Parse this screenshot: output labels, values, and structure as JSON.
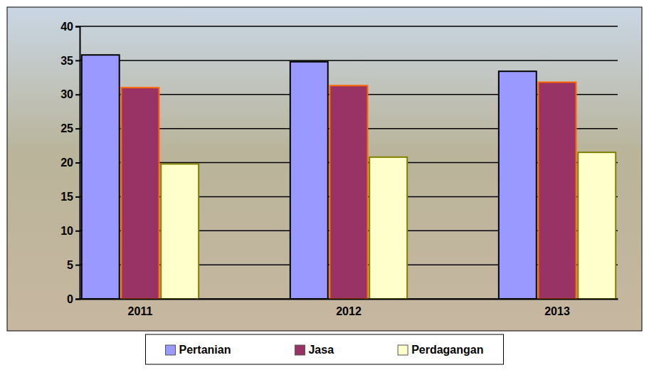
{
  "chart_data": {
    "type": "bar",
    "categories": [
      "2011",
      "2012",
      "2013"
    ],
    "series": [
      {
        "name": "Pertanian",
        "color": "#9999ff",
        "values": [
          35.8,
          34.8,
          33.4
        ]
      },
      {
        "name": "Jasa",
        "color": "#993366",
        "values": [
          31.0,
          31.3,
          31.8
        ]
      },
      {
        "name": "Perdagangan",
        "color": "#ffffcc",
        "values": [
          19.8,
          20.8,
          21.5
        ]
      }
    ],
    "ylim": [
      0,
      40
    ],
    "yticks": [
      0,
      5,
      10,
      15,
      20,
      25,
      30,
      35,
      40
    ],
    "grid": true,
    "legend": "bottom"
  }
}
